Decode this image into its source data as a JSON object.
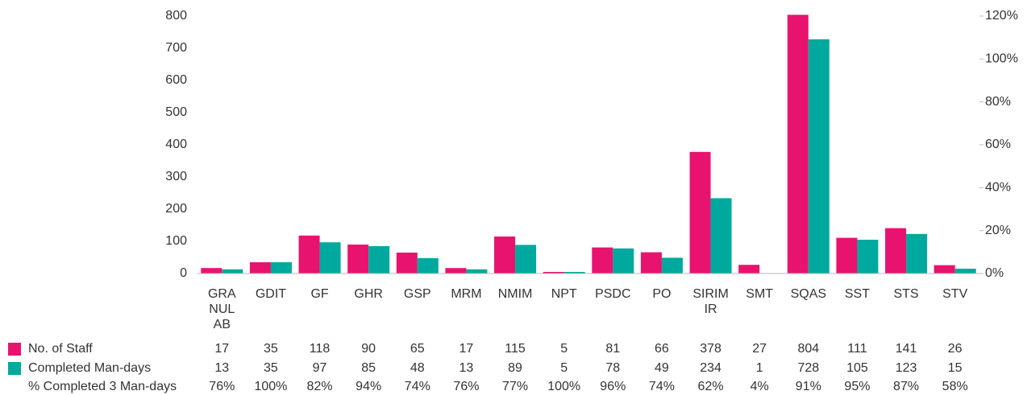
{
  "chart_data": {
    "type": "bar",
    "categories": [
      "GRANULAB",
      "GDIT",
      "GF",
      "GHR",
      "GSP",
      "MRM",
      "NMIM",
      "NPT",
      "PSDC",
      "PO",
      "SIRIMIR",
      "SMT",
      "SQAS",
      "SST",
      "STS",
      "STV"
    ],
    "series": [
      {
        "name": "No. of Staff",
        "color": "#e8136e",
        "values": [
          17,
          35,
          118,
          90,
          65,
          17,
          115,
          5,
          81,
          66,
          378,
          27,
          804,
          111,
          141,
          26
        ]
      },
      {
        "name": "Completed Man-days",
        "color": "#00a99d",
        "values": [
          13,
          35,
          97,
          85,
          48,
          13,
          89,
          5,
          78,
          49,
          234,
          1,
          728,
          105,
          123,
          15
        ]
      },
      {
        "name": "% Completed 3 Man-days",
        "axis": "y2",
        "values": [
          76,
          100,
          82,
          94,
          74,
          76,
          77,
          100,
          96,
          74,
          62,
          4,
          91,
          95,
          87,
          58
        ],
        "value_labels": [
          "76%",
          "100%",
          "82%",
          "94%",
          "74%",
          "76%",
          "77%",
          "100%",
          "96%",
          "74%",
          "62%",
          "4%",
          "91%",
          "95%",
          "87%",
          "58%"
        ]
      }
    ],
    "ylim": [
      0,
      800
    ],
    "yticks": [
      0,
      100,
      200,
      300,
      400,
      500,
      600,
      700,
      800
    ],
    "y2lim": [
      0,
      120
    ],
    "y2ticks": [
      {
        "value": 0,
        "label": "0%"
      },
      {
        "value": 20,
        "label": "20%"
      },
      {
        "value": 40,
        "label": "40%"
      },
      {
        "value": 60,
        "label": "60%"
      },
      {
        "value": 80,
        "label": "80%"
      },
      {
        "value": 100,
        "label": "100%"
      },
      {
        "value": 120,
        "label": "120%"
      }
    ]
  }
}
